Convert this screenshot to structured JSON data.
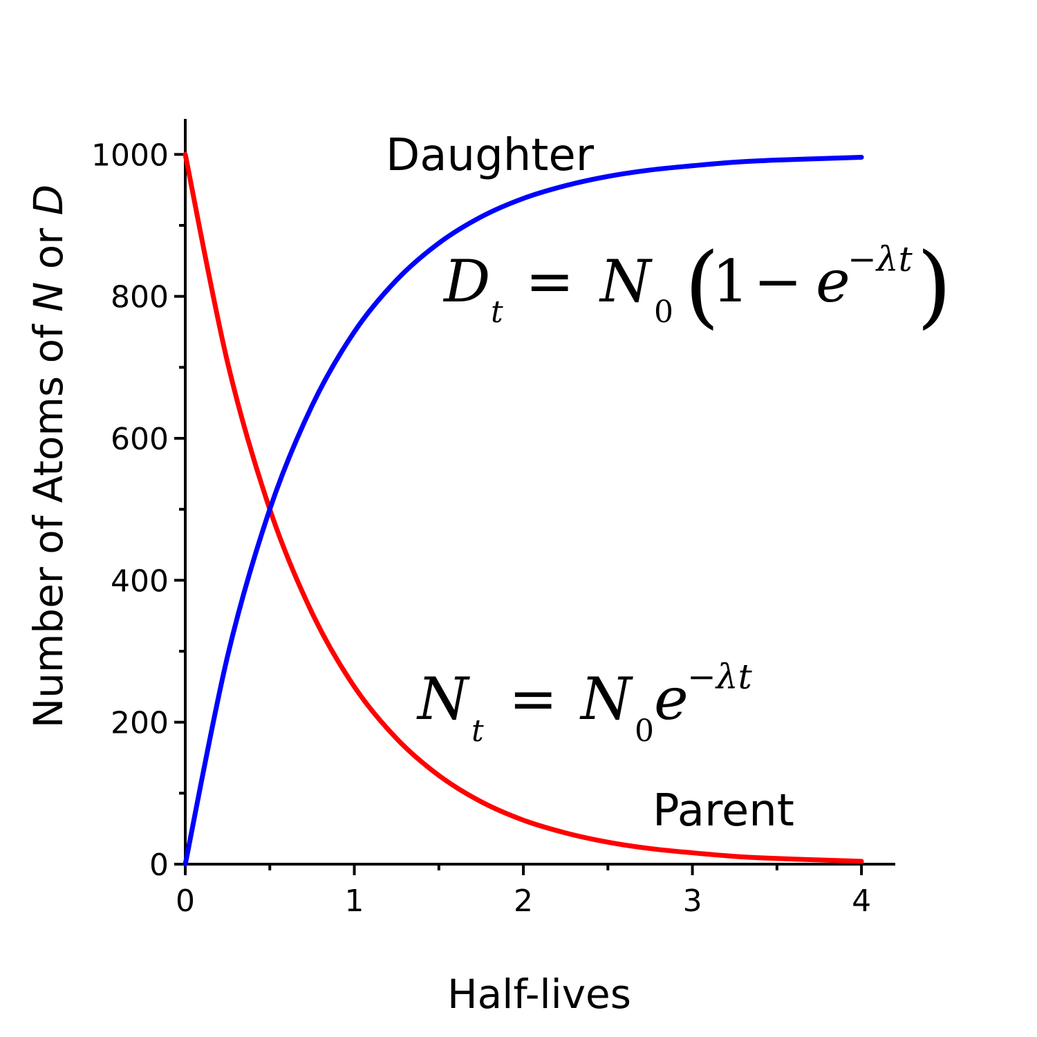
{
  "chart_data": {
    "type": "line",
    "xlabel": "Half-lives",
    "ylabel_parts": [
      "Number of Atoms of ",
      "N",
      " or ",
      "D"
    ],
    "xlim": [
      0,
      4.2
    ],
    "ylim": [
      0,
      1050
    ],
    "x_ticks": [
      0,
      1,
      2,
      3,
      4
    ],
    "y_ticks": [
      0,
      200,
      400,
      600,
      800,
      1000
    ],
    "x": [
      0,
      0.25,
      0.5,
      0.75,
      1,
      1.25,
      1.5,
      1.75,
      2,
      2.25,
      2.5,
      2.75,
      3,
      3.25,
      3.5,
      3.75,
      4
    ],
    "series": [
      {
        "name": "Parent",
        "color": "#ff0000",
        "values": [
          1000,
          707,
          500,
          354,
          250,
          177,
          125,
          88,
          62,
          44,
          31,
          22,
          16,
          11,
          8,
          6,
          4
        ]
      },
      {
        "name": "Daughter",
        "color": "#0000ff",
        "values": [
          0,
          293,
          500,
          646,
          750,
          823,
          875,
          912,
          938,
          956,
          969,
          978,
          984,
          989,
          992,
          994,
          996
        ]
      }
    ],
    "annotations": {
      "daughter_equation": {
        "lhs": "D",
        "lhs_sub": "t",
        "equals": "=",
        "n": "N",
        "n_sub": "0",
        "open": "(",
        "one": "1",
        "minus": "−",
        "e": "e",
        "exp": "−λt",
        "close": ")"
      },
      "parent_equation": {
        "lhs": "N",
        "lhs_sub": "t",
        "equals": "=",
        "n": "N",
        "n_sub": "0",
        "e": "e",
        "exp": "−λt"
      }
    }
  }
}
